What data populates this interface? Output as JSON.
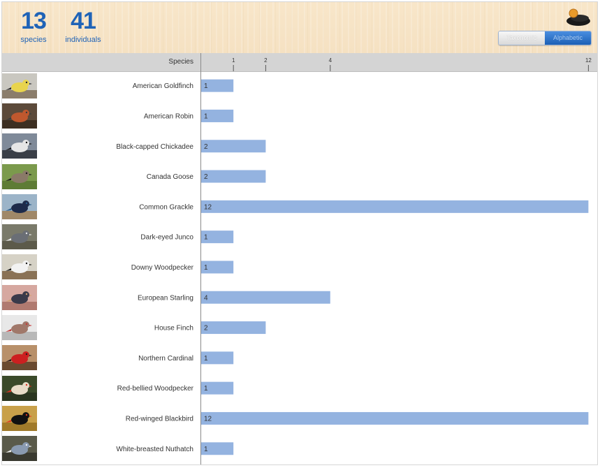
{
  "summary": {
    "species_count": "13",
    "species_label": "species",
    "individuals_count": "41",
    "individuals_label": "individuals"
  },
  "sort_toggle": {
    "options": [
      "Taxonomic",
      "Alphabetic"
    ],
    "selected": "Alphabetic"
  },
  "table": {
    "species_column_label": "Species"
  },
  "thumbnails": [
    {
      "name": "american-goldfinch",
      "sky": "#c9c7c0",
      "ground": "#8b7d6b",
      "bird": "#e8d44d",
      "accent": "#2a2a2a"
    },
    {
      "name": "american-robin",
      "sky": "#5c4a3a",
      "ground": "#3d2f22",
      "bird": "#c0582e",
      "accent": "#3a3a3a"
    },
    {
      "name": "black-capped-chickadee",
      "sky": "#7f8a99",
      "ground": "#3a3f47",
      "bird": "#e6e6e6",
      "accent": "#151515"
    },
    {
      "name": "canada-goose",
      "sky": "#7b9a4c",
      "ground": "#5e7c35",
      "bird": "#8a7a68",
      "accent": "#1a1a1a"
    },
    {
      "name": "common-grackle",
      "sky": "#9cb4c8",
      "ground": "#a08868",
      "bird": "#1d2a4a",
      "accent": "#2a5c8a"
    },
    {
      "name": "dark-eyed-junco",
      "sky": "#7a7a6a",
      "ground": "#5c5a4a",
      "bird": "#6a6e75",
      "accent": "#e6e6e6"
    },
    {
      "name": "downy-woodpecker",
      "sky": "#d6d2c6",
      "ground": "#8a7256",
      "bird": "#f2f2f2",
      "accent": "#1a1a1a"
    },
    {
      "name": "european-starling",
      "sky": "#d6a8a0",
      "ground": "#b07a70",
      "bird": "#3a3a4a",
      "accent": "#d0a070"
    },
    {
      "name": "house-finch",
      "sky": "#e8e8e8",
      "ground": "#b8b8b8",
      "bird": "#a0786a",
      "accent": "#c43a3a"
    },
    {
      "name": "northern-cardinal",
      "sky": "#b8906a",
      "ground": "#6a4a30",
      "bird": "#cc2020",
      "accent": "#2a1a1a"
    },
    {
      "name": "red-bellied-woodpecker",
      "sky": "#3a4a2a",
      "ground": "#2a3520",
      "bird": "#e8dcc8",
      "accent": "#d83020"
    },
    {
      "name": "red-winged-blackbird",
      "sky": "#c8a04a",
      "ground": "#a07a2a",
      "bird": "#111111",
      "accent": "#e03a20"
    },
    {
      "name": "white-breasted-nuthatch",
      "sky": "#5a5a4a",
      "ground": "#3a3a30",
      "bird": "#8a9ab0",
      "accent": "#f0f0f0"
    }
  ],
  "chart_data": {
    "type": "bar",
    "orientation": "horizontal",
    "categories": [
      "American Goldfinch",
      "American Robin",
      "Black-capped Chickadee",
      "Canada Goose",
      "Common Grackle",
      "Dark-eyed Junco",
      "Downy Woodpecker",
      "European Starling",
      "House Finch",
      "Northern Cardinal",
      "Red-bellied Woodpecker",
      "Red-winged Blackbird",
      "White-breasted Nuthatch"
    ],
    "values": [
      1,
      1,
      2,
      2,
      12,
      1,
      1,
      4,
      2,
      1,
      1,
      12,
      1
    ],
    "x_ticks": [
      1,
      2,
      4,
      12
    ],
    "xlim": [
      0,
      12
    ],
    "bar_color": "#94b3e0",
    "grid": false
  }
}
